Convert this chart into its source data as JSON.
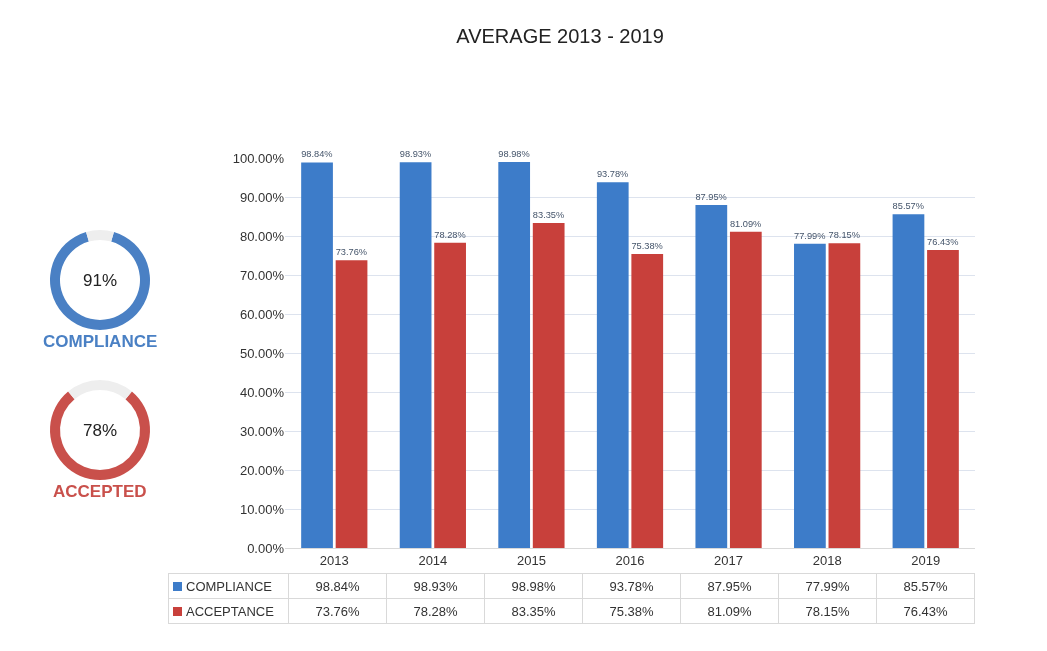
{
  "chart_data": [
    {
      "type": "bar",
      "title": "AVERAGE 2013 - 2019",
      "categories": [
        "2013",
        "2014",
        "2015",
        "2016",
        "2017",
        "2018",
        "2019"
      ],
      "series": [
        {
          "name": "COMPLIANCE",
          "color": "#3d7cc9",
          "values": [
            98.84,
            98.93,
            98.98,
            93.78,
            87.95,
            77.99,
            85.57
          ],
          "value_labels": [
            "98.84%",
            "98.93%",
            "98.98%",
            "93.78%",
            "87.95%",
            "77.99%",
            "85.57%"
          ]
        },
        {
          "name": "ACCEPTANCE",
          "color": "#c8403b",
          "values": [
            73.76,
            78.28,
            83.35,
            75.38,
            81.09,
            78.15,
            76.43
          ],
          "value_labels": [
            "73.76%",
            "78.28%",
            "83.35%",
            "75.38%",
            "81.09%",
            "78.15%",
            "76.43%"
          ]
        }
      ],
      "ylim": [
        0,
        100
      ],
      "yticks": [
        {
          "value": 0,
          "label": "0.00%"
        },
        {
          "value": 10,
          "label": "10.00%"
        },
        {
          "value": 20,
          "label": "20.00%"
        },
        {
          "value": 30,
          "label": "30.00%"
        },
        {
          "value": 40,
          "label": "40.00%"
        },
        {
          "value": 50,
          "label": "50.00%"
        },
        {
          "value": 60,
          "label": "60.00%"
        },
        {
          "value": 70,
          "label": "70.00%"
        },
        {
          "value": 80,
          "label": "80.00%"
        },
        {
          "value": 90,
          "label": "90.00%"
        },
        {
          "value": 100,
          "label": "100.00%"
        }
      ],
      "grid": "y",
      "legend": "bottom"
    },
    {
      "type": "donut",
      "title": "COMPLIANCE",
      "categories": [
        null,
        null
      ],
      "values": [
        91,
        9
      ],
      "colors": [
        "#4a80c4",
        "#eeeeee"
      ],
      "value_labels": [
        "91%",
        null
      ]
    },
    {
      "type": "donut",
      "title": "ACCEPTED",
      "categories": [
        null,
        null
      ],
      "values": [
        78,
        22
      ],
      "colors": [
        "#c9504b",
        "#eeeeee"
      ],
      "value_labels": [
        "78%",
        null
      ]
    }
  ]
}
